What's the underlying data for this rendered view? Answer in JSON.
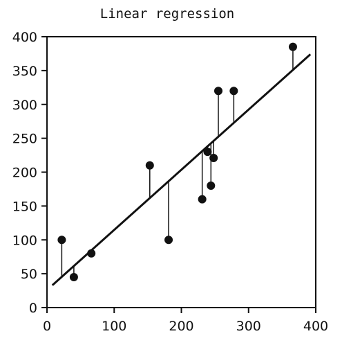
{
  "chart_data": {
    "type": "scatter",
    "title": "Linear regression",
    "xlabel": "",
    "ylabel": "",
    "xlim": [
      0,
      400
    ],
    "ylim": [
      0,
      400
    ],
    "xticks": [
      "0",
      "100",
      "200",
      "300",
      "400"
    ],
    "yticks": [
      "0",
      "50",
      "100",
      "150",
      "200",
      "250",
      "300",
      "350",
      "400"
    ],
    "grid": false,
    "legend": "none",
    "colors": {
      "marks": "#111111",
      "background": "#ffffff"
    },
    "points": [
      {
        "x": 22,
        "y": 100
      },
      {
        "x": 40,
        "y": 45
      },
      {
        "x": 66,
        "y": 80
      },
      {
        "x": 153,
        "y": 210
      },
      {
        "x": 181,
        "y": 100
      },
      {
        "x": 231,
        "y": 160
      },
      {
        "x": 239,
        "y": 230
      },
      {
        "x": 244,
        "y": 180
      },
      {
        "x": 248,
        "y": 221
      },
      {
        "x": 255,
        "y": 320
      },
      {
        "x": 278,
        "y": 320
      },
      {
        "x": 366,
        "y": 385
      }
    ],
    "regression_line": {
      "x": [
        8,
        392
      ],
      "y": [
        33,
        374
      ]
    },
    "residual_lines": true
  }
}
